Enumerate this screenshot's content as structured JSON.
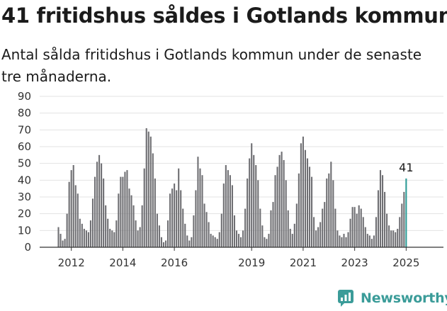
{
  "title": "41 fritidshus såldes i Gotlands kommun",
  "subtitle": "Antal sålda fritidshus i Gotlands kommun under de senaste tre månaderna.",
  "brand": {
    "name": "Newsworthy",
    "color": "#3b9c99",
    "icon": "newsworthy-logo-icon"
  },
  "colors": {
    "bar": "#6f6f73",
    "highlight": "#2e9c97",
    "grid": "#e3e3e3",
    "axis": "#333333"
  },
  "chart_data": {
    "type": "bar",
    "title": "41 fritidshus såldes i Gotlands kommun",
    "subtitle": "Antal sålda fritidshus i Gotlands kommun under de senaste tre månaderna.",
    "xlabel": "",
    "ylabel": "",
    "ylim": [
      0,
      90
    ],
    "yticks": [
      0,
      10,
      20,
      30,
      40,
      50,
      60,
      70,
      80,
      90
    ],
    "grid": true,
    "legend": "none",
    "xticks": [
      {
        "label": "2012",
        "index": 6
      },
      {
        "label": "2014",
        "index": 30
      },
      {
        "label": "2016",
        "index": 54
      },
      {
        "label": "2019",
        "index": 90
      },
      {
        "label": "2021",
        "index": 114
      },
      {
        "label": "2023",
        "index": 138
      },
      {
        "label": "2025",
        "index": 162
      }
    ],
    "values": [
      12,
      8,
      4,
      5,
      20,
      39,
      46,
      49,
      37,
      32,
      17,
      14,
      11,
      10,
      9,
      16,
      29,
      42,
      51,
      55,
      50,
      41,
      25,
      17,
      11,
      10,
      9,
      16,
      32,
      42,
      42,
      45,
      46,
      35,
      31,
      25,
      16,
      10,
      12,
      25,
      47,
      71,
      69,
      66,
      56,
      41,
      20,
      13,
      6,
      3,
      4,
      16,
      32,
      35,
      38,
      34,
      47,
      34,
      23,
      14,
      7,
      4,
      6,
      19,
      34,
      54,
      47,
      43,
      26,
      21,
      15,
      8,
      7,
      6,
      5,
      9,
      20,
      38,
      49,
      46,
      43,
      37,
      19,
      10,
      8,
      6,
      10,
      23,
      41,
      53,
      62,
      55,
      49,
      40,
      23,
      13,
      6,
      5,
      8,
      22,
      27,
      43,
      48,
      55,
      57,
      52,
      40,
      22,
      11,
      8,
      14,
      26,
      44,
      62,
      66,
      58,
      53,
      48,
      42,
      18,
      10,
      12,
      15,
      23,
      27,
      41,
      44,
      51,
      40,
      23,
      10,
      7,
      6,
      8,
      6,
      9,
      17,
      24,
      24,
      20,
      25,
      23,
      18,
      12,
      8,
      7,
      5,
      7,
      18,
      34,
      46,
      43,
      33,
      20,
      13,
      10,
      10,
      9,
      11,
      18,
      26,
      33,
      41
    ],
    "last_value": 41
  }
}
